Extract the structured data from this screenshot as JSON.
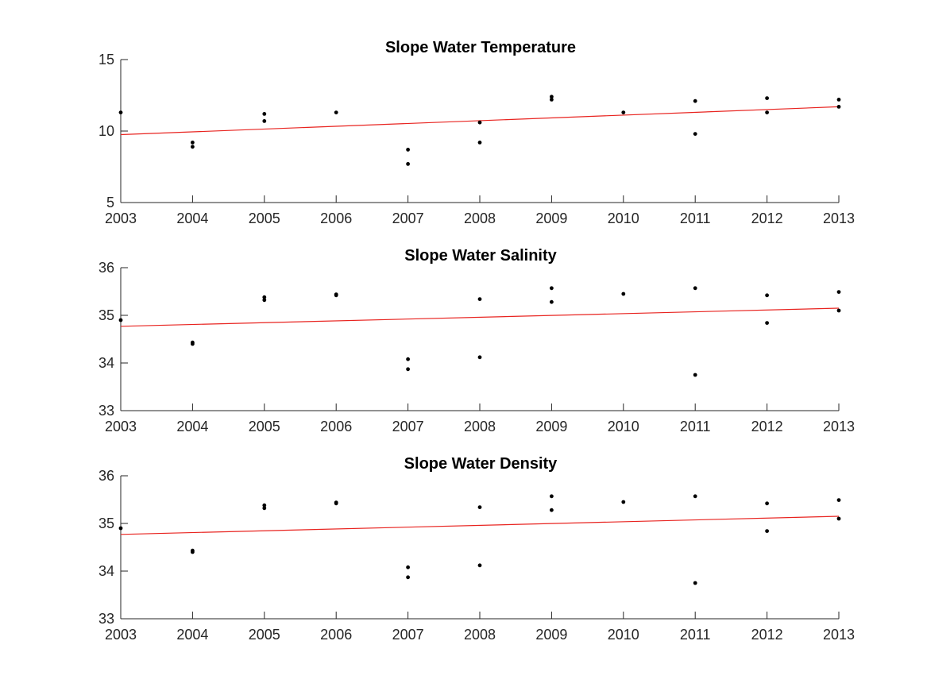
{
  "colors": {
    "points": "#000000",
    "trend": "#e8231f",
    "axis": "#262626"
  },
  "chart_data": [
    {
      "type": "scatter",
      "title": "Slope Water Temperature",
      "xlabel": "",
      "ylabel": "",
      "xlim": [
        2003,
        2013
      ],
      "ylim": [
        5,
        15
      ],
      "xticks": [
        2003,
        2004,
        2005,
        2006,
        2007,
        2008,
        2009,
        2010,
        2011,
        2012,
        2013
      ],
      "yticks": [
        5,
        10,
        15
      ],
      "grid": false,
      "series": [
        {
          "points": [
            [
              2003,
              11.3
            ],
            [
              2004,
              9.2
            ],
            [
              2004,
              8.9
            ],
            [
              2005,
              11.2
            ],
            [
              2005,
              10.7
            ],
            [
              2006,
              11.3
            ],
            [
              2007,
              8.7
            ],
            [
              2007,
              7.7
            ],
            [
              2008,
              10.6
            ],
            [
              2008,
              9.2
            ],
            [
              2009,
              12.4
            ],
            [
              2009,
              12.2
            ],
            [
              2010,
              11.3
            ],
            [
              2011,
              12.1
            ],
            [
              2011,
              9.8
            ],
            [
              2012,
              12.3
            ],
            [
              2012,
              11.3
            ],
            [
              2013,
              12.2
            ],
            [
              2013,
              11.7
            ]
          ]
        }
      ],
      "trend_line": [
        [
          2003,
          9.75
        ],
        [
          2013,
          11.7
        ]
      ]
    },
    {
      "type": "scatter",
      "title": "Slope Water Salinity",
      "xlabel": "",
      "ylabel": "",
      "xlim": [
        2003,
        2013
      ],
      "ylim": [
        33,
        36
      ],
      "xticks": [
        2003,
        2004,
        2005,
        2006,
        2007,
        2008,
        2009,
        2010,
        2011,
        2012,
        2013
      ],
      "yticks": [
        33,
        34,
        35,
        36
      ],
      "grid": false,
      "series": [
        {
          "points": [
            [
              2003,
              34.9
            ],
            [
              2004,
              34.43
            ],
            [
              2004,
              34.4
            ],
            [
              2005,
              35.38
            ],
            [
              2005,
              35.32
            ],
            [
              2006,
              35.44
            ],
            [
              2006,
              35.42
            ],
            [
              2007,
              34.08
            ],
            [
              2007,
              33.87
            ],
            [
              2008,
              35.34
            ],
            [
              2008,
              34.12
            ],
            [
              2009,
              35.57
            ],
            [
              2009,
              35.28
            ],
            [
              2010,
              35.45
            ],
            [
              2011,
              35.57
            ],
            [
              2011,
              33.75
            ],
            [
              2012,
              35.42
            ],
            [
              2012,
              34.84
            ],
            [
              2013,
              35.49
            ],
            [
              2013,
              35.1
            ]
          ]
        }
      ],
      "trend_line": [
        [
          2003,
          34.77
        ],
        [
          2013,
          35.15
        ]
      ]
    },
    {
      "type": "scatter",
      "title": "Slope Water Density",
      "xlabel": "",
      "ylabel": "",
      "xlim": [
        2003,
        2013
      ],
      "ylim": [
        33,
        36
      ],
      "xticks": [
        2003,
        2004,
        2005,
        2006,
        2007,
        2008,
        2009,
        2010,
        2011,
        2012,
        2013
      ],
      "yticks": [
        33,
        34,
        35,
        36
      ],
      "grid": false,
      "series": [
        {
          "points": [
            [
              2003,
              34.9
            ],
            [
              2004,
              34.43
            ],
            [
              2004,
              34.4
            ],
            [
              2005,
              35.38
            ],
            [
              2005,
              35.32
            ],
            [
              2006,
              35.44
            ],
            [
              2006,
              35.42
            ],
            [
              2007,
              34.08
            ],
            [
              2007,
              33.87
            ],
            [
              2008,
              35.34
            ],
            [
              2008,
              34.12
            ],
            [
              2009,
              35.57
            ],
            [
              2009,
              35.28
            ],
            [
              2010,
              35.45
            ],
            [
              2011,
              35.57
            ],
            [
              2011,
              33.75
            ],
            [
              2012,
              35.42
            ],
            [
              2012,
              34.84
            ],
            [
              2013,
              35.49
            ],
            [
              2013,
              35.1
            ]
          ]
        }
      ],
      "trend_line": [
        [
          2003,
          34.77
        ],
        [
          2013,
          35.15
        ]
      ]
    }
  ]
}
